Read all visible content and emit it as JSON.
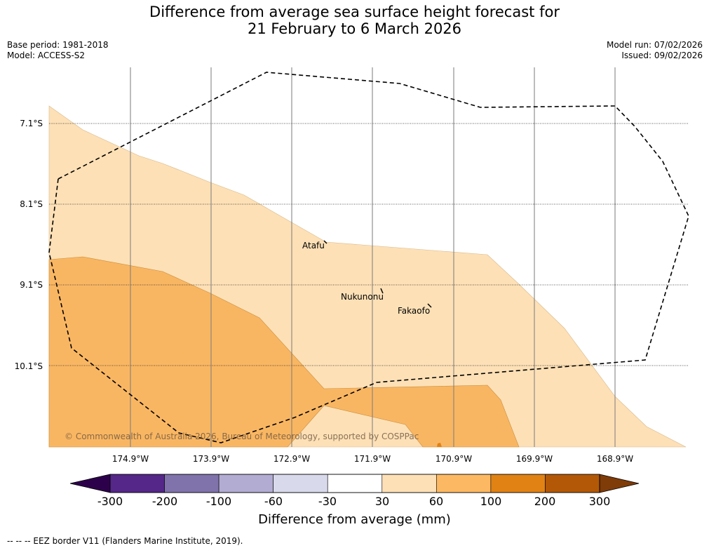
{
  "title": {
    "line1": "Difference from average sea surface height forecast for",
    "line2": "21 February to 6 March 2026"
  },
  "meta_left": {
    "base_period": "Base period: 1981-2018",
    "model": "Model: ACCESS-S2"
  },
  "meta_right": {
    "model_run": "Model run: 07/02/2026",
    "issued": "Issued: 09/02/2026"
  },
  "map": {
    "latitudes": [
      {
        "label": "7.1°S",
        "value": -7.1
      },
      {
        "label": "8.1°S",
        "value": -8.1
      },
      {
        "label": "9.1°S",
        "value": -9.1
      },
      {
        "label": "10.1°S",
        "value": -10.1
      }
    ],
    "longitudes": [
      {
        "label": "174.9°W",
        "value": -174.9
      },
      {
        "label": "173.9°W",
        "value": -173.9
      },
      {
        "label": "172.9°W",
        "value": -172.9
      },
      {
        "label": "171.9°W",
        "value": -171.9
      },
      {
        "label": "170.9°W",
        "value": -170.9
      },
      {
        "label": "169.9°W",
        "value": -169.9
      },
      {
        "label": "168.9°W",
        "value": -168.9
      }
    ],
    "places": [
      {
        "name": "Atafu"
      },
      {
        "name": "Nukunonu"
      },
      {
        "name": "Fakaofo"
      }
    ],
    "contour_colors": {
      "band_30_60": "#fde0b6",
      "band_60_100": "#f9b662",
      "band_100_200": "#e08214"
    },
    "copyright": "© Commonwealth of Australia 2026, Bureau of Meteorology, supported by COSPPac"
  },
  "colorbar": {
    "label": "Difference from average (mm)",
    "ticks": [
      "-300",
      "-200",
      "-100",
      "-60",
      "-30",
      "30",
      "60",
      "100",
      "200",
      "300"
    ],
    "colors": {
      "extend_low": "#2d004b",
      "bins": [
        "#542788",
        "#8073ac",
        "#b2abd2",
        "#d8daeb",
        "#ffffff",
        "#fee0b6",
        "#fdb863",
        "#e08214",
        "#b35806"
      ],
      "extend_high": "#7f3b08"
    }
  },
  "footnote": "--  --  -- EEZ border V11 (Flanders Marine Institute, 2019)."
}
